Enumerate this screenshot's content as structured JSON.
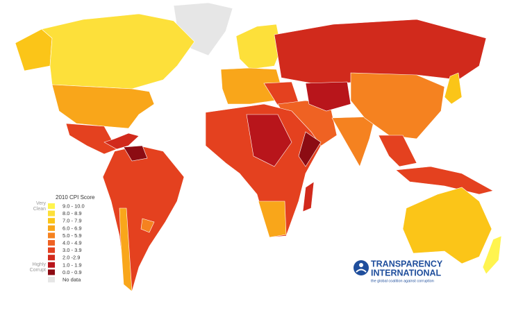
{
  "legend": {
    "title": "2010 CPI Score",
    "top_label": "Very Clean",
    "bottom_label": "Highly Corrupt",
    "items": [
      {
        "label": "9.0 - 10.0",
        "color": "#fff44f"
      },
      {
        "label": "8.0 - 8.9",
        "color": "#fde03a"
      },
      {
        "label": "7.0 - 7.9",
        "color": "#fbc518"
      },
      {
        "label": "6.0 - 6.9",
        "color": "#f9a61a"
      },
      {
        "label": "5.0 - 5.9",
        "color": "#f58220"
      },
      {
        "label": "4.0 - 4.9",
        "color": "#ef6223"
      },
      {
        "label": "3.0 - 3.9",
        "color": "#e4411f"
      },
      {
        "label": "2.0 -2.9",
        "color": "#d12a1c"
      },
      {
        "label": "1.0 - 1.9",
        "color": "#b8151b"
      },
      {
        "label": "0.0 - 0.9",
        "color": "#8c0c13"
      },
      {
        "label": "No data",
        "color": "#e6e6e6"
      }
    ]
  },
  "logo": {
    "line1": "TRANSPARENCY",
    "line2": "INTERNATIONAL",
    "tagline": "the global coalition against corruption"
  }
}
